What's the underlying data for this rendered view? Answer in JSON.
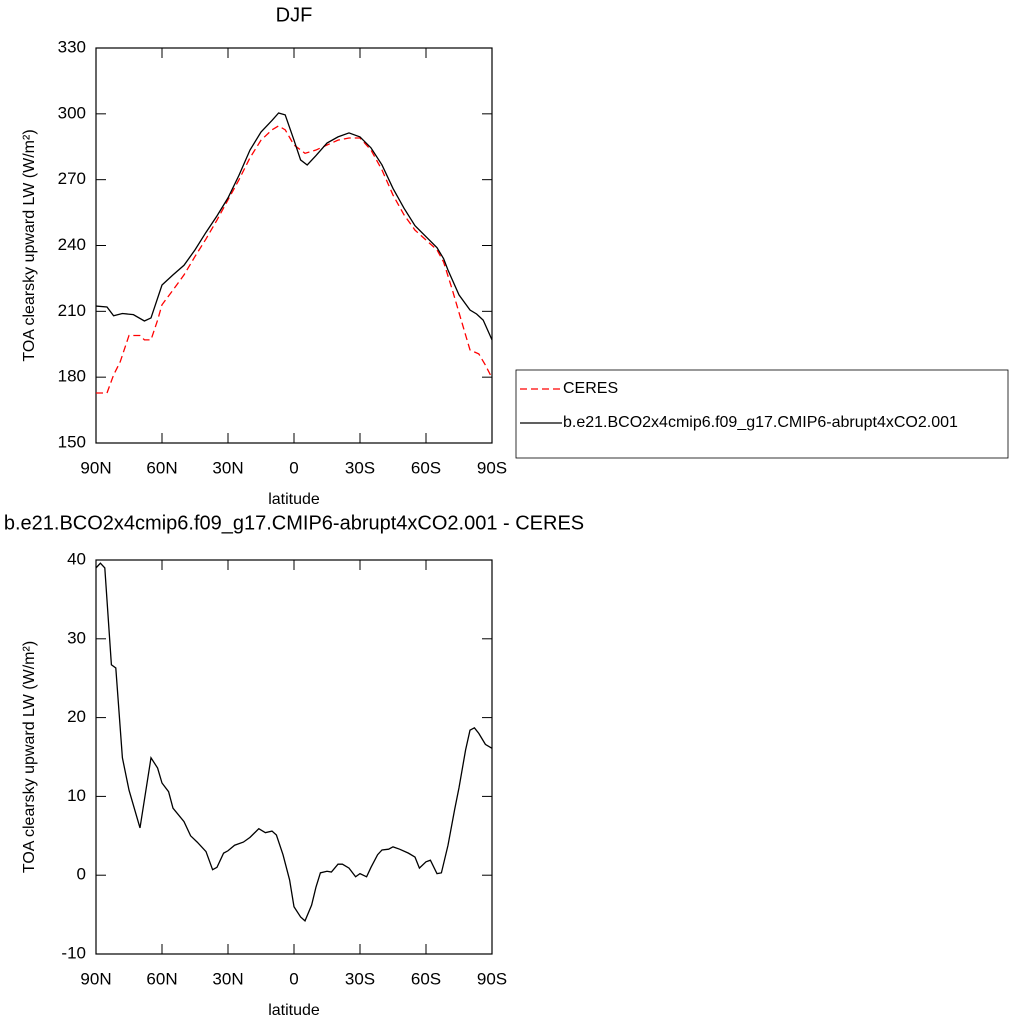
{
  "chart_data": [
    {
      "type": "line",
      "title": "DJF",
      "xlabel": "latitude",
      "ylabel": "TOA clearsky upward LW (W/m²)",
      "xlim": [
        90,
        -90
      ],
      "xticks": [
        {
          "value": 90,
          "label": "90N"
        },
        {
          "value": 60,
          "label": "60N"
        },
        {
          "value": 30,
          "label": "30N"
        },
        0,
        {
          "value": -30,
          "label": "30S"
        },
        {
          "value": -60,
          "label": "60S"
        },
        {
          "value": -90,
          "label": "90S"
        }
      ],
      "ylim": [
        150,
        330
      ],
      "yticks": [
        150,
        180,
        210,
        240,
        270,
        300,
        330
      ],
      "legend": "right",
      "series": [
        {
          "name": "CERES",
          "color": "#ff0000",
          "line_style": "dashed",
          "x": [
            90,
            85,
            82,
            79,
            75,
            70,
            68,
            65,
            62,
            60,
            55,
            50,
            45,
            40,
            35,
            30,
            25,
            20,
            15,
            10,
            7,
            4,
            0,
            -5,
            -10,
            -15,
            -20,
            -25,
            -30,
            -35,
            -40,
            -45,
            -50,
            -55,
            -60,
            -65,
            -68,
            -72,
            -76,
            -80,
            -84,
            -87,
            -90
          ],
          "values": [
            172.8,
            172.8,
            181,
            187,
            199,
            199,
            197,
            197,
            206,
            213,
            219.7,
            226.6,
            235,
            243,
            251.6,
            260.8,
            270,
            280,
            288,
            292.7,
            294.5,
            292.7,
            285.8,
            282,
            283.5,
            285.8,
            288,
            289,
            289,
            283.5,
            274.4,
            263,
            254,
            247,
            242.5,
            238,
            232.5,
            219.7,
            206,
            192.4,
            190.6,
            185.5,
            179.6
          ]
        },
        {
          "name": "b.e21.BCO2x4cmip6.f09_g17.CMIP6-abrupt4xCO2.001",
          "color": "#000000",
          "line_style": "solid",
          "x": [
            90,
            85,
            82,
            78,
            73,
            68,
            65,
            60,
            55,
            50,
            45,
            40,
            35,
            30,
            25,
            20,
            15,
            10,
            7,
            4,
            0,
            -3,
            -6,
            -10,
            -15,
            -20,
            -25,
            -30,
            -35,
            -40,
            -45,
            -50,
            -55,
            -60,
            -65,
            -68,
            -70,
            -75,
            -80,
            -83,
            -86,
            -90
          ],
          "values": [
            212.4,
            212,
            208,
            209,
            208.5,
            205.6,
            207,
            222,
            226.6,
            231,
            238,
            246,
            253.5,
            261.7,
            272,
            283.5,
            291.7,
            297,
            300.4,
            299.5,
            288,
            279,
            276.7,
            281,
            286.7,
            289.5,
            291.3,
            289.5,
            284.5,
            276.7,
            266,
            257,
            249,
            244,
            239,
            234,
            228.8,
            217.5,
            210.6,
            208.8,
            206,
            197
          ]
        }
      ]
    },
    {
      "type": "line",
      "title": "b.e21.BCO2x4cmip6.f09_g17.CMIP6-abrupt4xCO2.001 - CERES",
      "xlabel": "latitude",
      "ylabel": "TOA clearsky upward LW (W/m²)",
      "xlim": [
        90,
        -90
      ],
      "xticks": [
        {
          "value": 90,
          "label": "90N"
        },
        {
          "value": 60,
          "label": "60N"
        },
        {
          "value": 30,
          "label": "30N"
        },
        0,
        {
          "value": -30,
          "label": "30S"
        },
        {
          "value": -60,
          "label": "60S"
        },
        {
          "value": -90,
          "label": "90S"
        }
      ],
      "ylim": [
        -10,
        40
      ],
      "yticks": [
        -10,
        0,
        10,
        20,
        30,
        40
      ],
      "series": [
        {
          "color": "#000000",
          "line_style": "solid",
          "x": [
            90,
            88,
            86,
            83,
            81,
            78,
            75,
            70,
            65,
            62,
            60,
            57,
            55,
            50,
            47,
            44,
            40,
            37,
            35,
            32,
            30,
            27,
            23,
            20,
            16,
            13,
            10,
            8,
            5,
            2,
            0,
            -3,
            -5,
            -8,
            -10,
            -12,
            -15,
            -17,
            -20,
            -22,
            -25,
            -28,
            -30,
            -33,
            -35,
            -38,
            -40,
            -43,
            -45,
            -48,
            -52,
            -55,
            -57,
            -60,
            -62,
            -65,
            -67,
            -70,
            -73,
            -75,
            -78,
            -80,
            -82,
            -84,
            -87,
            -90
          ],
          "values": [
            39,
            39.6,
            39,
            26.7,
            26.3,
            14.9,
            10.8,
            6,
            14.9,
            13.6,
            11.7,
            10.6,
            8.5,
            6.8,
            5,
            4.2,
            3,
            0.7,
            1,
            2.8,
            3.1,
            3.8,
            4.2,
            4.8,
            5.9,
            5.4,
            5.6,
            5.1,
            2.6,
            -0.6,
            -4,
            -5.3,
            -5.8,
            -3.8,
            -1.5,
            0.3,
            0.5,
            0.4,
            1.4,
            1.4,
            0.9,
            -0.2,
            0.2,
            -0.2,
            1,
            2.6,
            3.2,
            3.3,
            3.6,
            3.3,
            2.8,
            2.3,
            0.9,
            1.7,
            1.9,
            0.2,
            0.3,
            3.8,
            8.3,
            11.1,
            15.9,
            18.4,
            18.7,
            18,
            16.6,
            16.1
          ]
        }
      ]
    }
  ]
}
